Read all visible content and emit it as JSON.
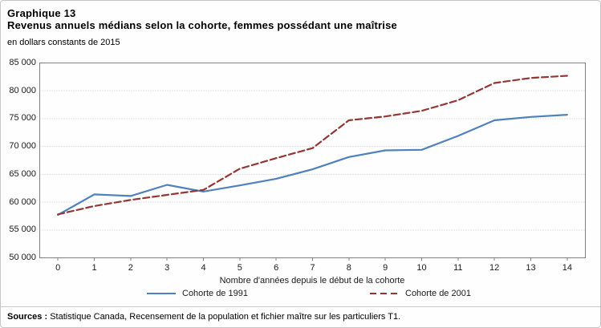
{
  "chart_data": {
    "type": "line",
    "title": "Graphique 13",
    "subtitle": "Revenus annuels médians selon la cohorte, femmes possédant une maîtrise",
    "units_note": "en dollars constants de 2015",
    "x": [
      0,
      1,
      2,
      3,
      4,
      5,
      6,
      7,
      8,
      9,
      10,
      11,
      12,
      13,
      14
    ],
    "xtick_labels": [
      "0",
      "1",
      "2",
      "3",
      "4",
      "5",
      "6",
      "7",
      "8",
      "9",
      "10",
      "11",
      "12",
      "13",
      "14"
    ],
    "xlabel": "Nombre d'années depuis le début de la cohorte",
    "ylabel": "",
    "ylim": [
      50000,
      85000
    ],
    "ytick_step": 5000,
    "ytick_labels_top_to_bottom": [
      "85 000",
      "80 000",
      "75 000",
      "70 000",
      "65 000",
      "60 000",
      "55 000",
      "50 000"
    ],
    "grid": true,
    "legend_position": "bottom",
    "series": [
      {
        "name": "Cohorte de 1991",
        "line_style": "solid",
        "color": "#4F81BD",
        "values": [
          57700,
          61400,
          61100,
          63100,
          61900,
          63000,
          64200,
          65900,
          68100,
          69300,
          69400,
          71900,
          74700,
          75300,
          75700
        ]
      },
      {
        "name": "Cohorte de 2001",
        "line_style": "dashed",
        "color": "#943634",
        "values": [
          57800,
          59300,
          60400,
          61300,
          62200,
          66000,
          67900,
          69700,
          74700,
          75400,
          76400,
          78300,
          81400,
          82300,
          82700
        ]
      }
    ]
  },
  "sources": {
    "label": "Sources :",
    "text": "Statistique Canada, Recensement de la population et fichier maître sur les particuliers T1."
  },
  "colors": {
    "series_1991": "#4F81BD",
    "series_2001": "#943634",
    "gridline": "#c9c9c9",
    "plot_border": "#7f7f7f",
    "figure_border": "#c6c6c6"
  }
}
